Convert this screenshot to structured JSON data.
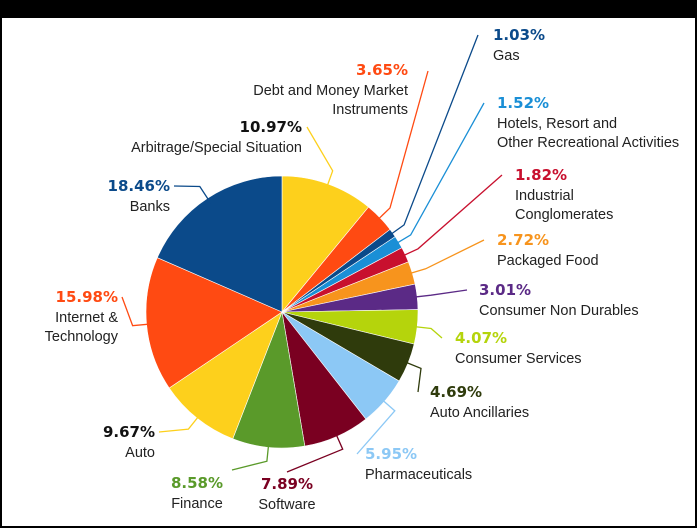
{
  "chart_data": {
    "type": "pie",
    "categories": [
      "Arbitrage/Special Situation",
      "Debt and Money Market Instruments",
      "Gas",
      "Hotels, Resort and Other Recreational Activities",
      "Industrial Conglomerates",
      "Packaged Food",
      "Consumer Non Durables",
      "Consumer Services",
      "Auto Ancillaries",
      "Pharmaceuticals",
      "Software",
      "Finance",
      "Auto",
      "Internet & Technology",
      "Banks"
    ],
    "values": [
      10.97,
      3.65,
      1.03,
      1.52,
      1.82,
      2.72,
      3.01,
      4.07,
      4.69,
      5.95,
      7.89,
      8.58,
      9.67,
      15.98,
      18.46
    ],
    "value_labels": [
      "10.97%",
      "3.65%",
      "1.03%",
      "1.52%",
      "1.82%",
      "2.72%",
      "3.01%",
      "4.07%",
      "4.69%",
      "5.95%",
      "7.89%",
      "8.58%",
      "9.67%",
      "15.98%",
      "18.46%"
    ],
    "colors": [
      "#fdd01c",
      "#ff4a12",
      "#0b4a8a",
      "#1a8fd6",
      "#c8102e",
      "#f7941d",
      "#5b2a86",
      "#b5d40c",
      "#2f3b0c",
      "#8cc8f5",
      "#7a0021",
      "#5a9a2a",
      "#fdd01c",
      "#ff4a12",
      "#0b4a8a"
    ]
  }
}
